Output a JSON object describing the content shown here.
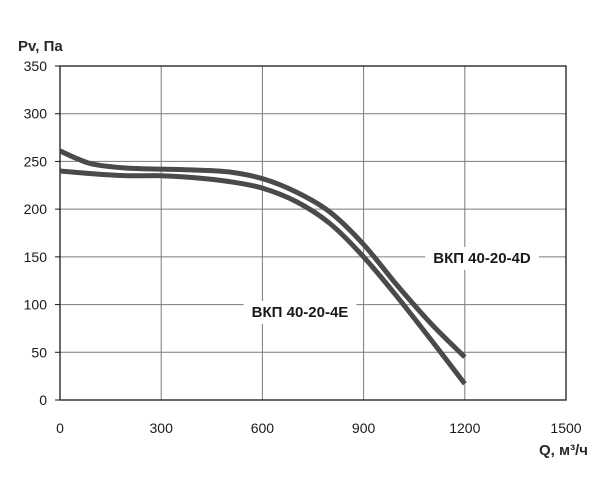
{
  "chart_data": {
    "type": "line",
    "xlabel": "Q, м³/ч",
    "ylabel": "Pv, Па",
    "xlim": [
      0,
      1500
    ],
    "ylim": [
      0,
      350
    ],
    "x_ticks": [
      0,
      300,
      600,
      900,
      1200,
      1500
    ],
    "y_ticks": [
      0,
      50,
      100,
      150,
      200,
      250,
      300,
      350
    ],
    "grid": true,
    "series": [
      {
        "name": "ВКП 40-20-4D",
        "x": [
          0,
          50,
          100,
          200,
          300,
          400,
          500,
          600,
          700,
          800,
          900,
          1000,
          1100,
          1200
        ],
        "y": [
          261,
          253,
          247,
          243,
          242,
          241,
          239,
          232,
          218,
          197,
          163,
          120,
          80,
          45
        ]
      },
      {
        "name": "ВКП 40-20-4E",
        "x": [
          0,
          100,
          200,
          300,
          400,
          500,
          600,
          700,
          800,
          900,
          1000,
          1100,
          1200
        ],
        "y": [
          240,
          237,
          235,
          235,
          233,
          229,
          222,
          208,
          185,
          150,
          108,
          63,
          17
        ]
      }
    ],
    "colors": {
      "line": "#4a4a4a",
      "grid": "#7a7a7a",
      "axis": "#1a1a1a"
    }
  }
}
